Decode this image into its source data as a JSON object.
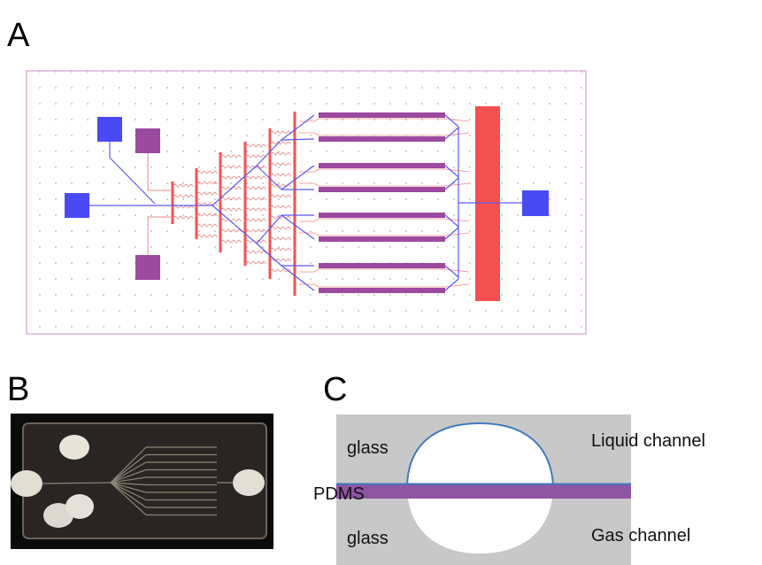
{
  "panels": {
    "a": {
      "label": "A"
    },
    "b": {
      "label": "B"
    },
    "c": {
      "label": "C",
      "top_layer": "glass",
      "liquid_channel": "Liquid channel",
      "membrane": "PDMS",
      "bottom_layer": "glass",
      "gas_channel": "Gas channel"
    }
  }
}
